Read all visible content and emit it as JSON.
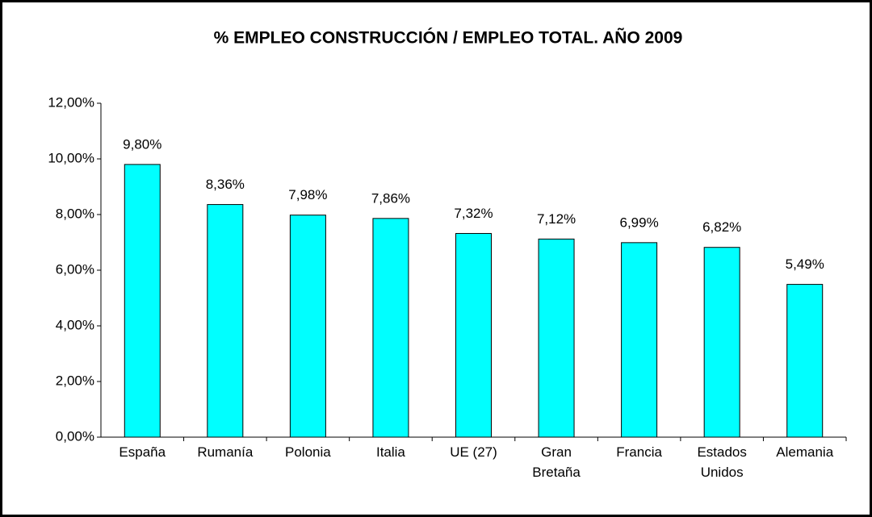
{
  "chart_data": {
    "type": "bar",
    "title": "% EMPLEO CONSTRUCCIÓN / EMPLEO TOTAL. AÑO 2009",
    "categories": [
      "España",
      "Rumanía",
      "Polonia",
      "Italia",
      "UE (27)",
      "Gran Bretaña",
      "Francia",
      "Estados Unidos",
      "Alemania"
    ],
    "values": [
      9.8,
      8.36,
      7.98,
      7.86,
      7.32,
      7.12,
      6.99,
      6.82,
      5.49
    ],
    "value_labels": [
      "9,80%",
      "8,36%",
      "7,98%",
      "7,86%",
      "7,32%",
      "7,12%",
      "6,99%",
      "6,82%",
      "5,49%"
    ],
    "color": "#00ffff",
    "ylim": [
      0,
      12
    ],
    "yticks": [
      {
        "value": 0,
        "label": "0,00%"
      },
      {
        "value": 2,
        "label": "2,00%"
      },
      {
        "value": 4,
        "label": "4,00%"
      },
      {
        "value": 6,
        "label": "6,00%"
      },
      {
        "value": 8,
        "label": "8,00%"
      },
      {
        "value": 10,
        "label": "10,00%"
      },
      {
        "value": 12,
        "label": "12,00%"
      }
    ],
    "grid": false
  }
}
